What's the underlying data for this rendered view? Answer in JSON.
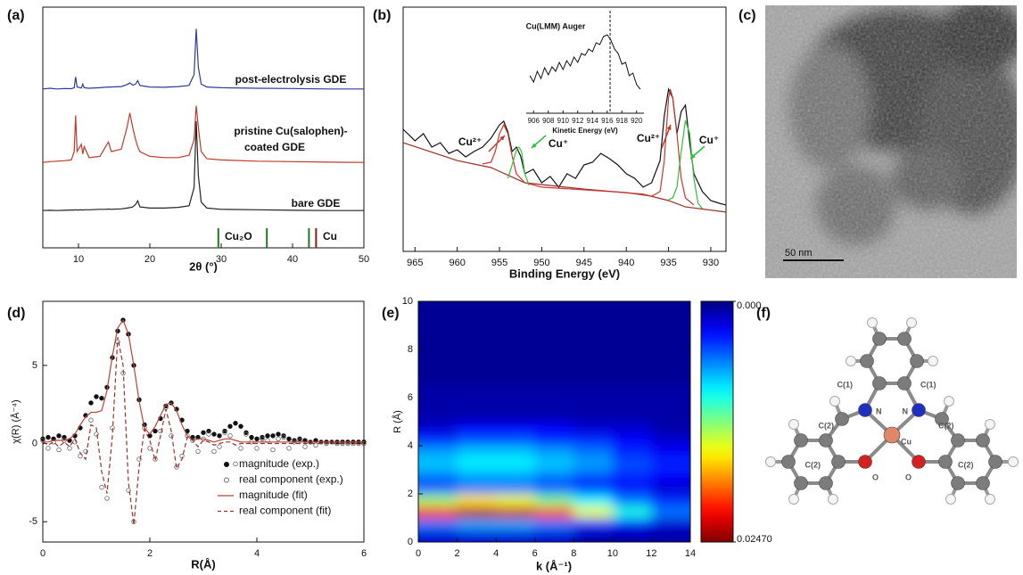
{
  "chart_data": [
    {
      "type": "line",
      "panel_label": "(a)",
      "xlabel": "2θ (°)",
      "xlim": [
        5,
        50
      ],
      "xticks": [
        10,
        20,
        30,
        40,
        50
      ],
      "ylim": [
        0,
        100
      ],
      "x": [
        5,
        6,
        7,
        8,
        9,
        9.4,
        9.6,
        9.8,
        10.4,
        10.6,
        10.8,
        11.5,
        13,
        13.8,
        14.2,
        14.6,
        16,
        16.8,
        17.2,
        17.6,
        18,
        18.3,
        18.6,
        20,
        22,
        24,
        25.5,
        26.2,
        26.5,
        26.8,
        27.2,
        28,
        30,
        35,
        40,
        45,
        50
      ],
      "series": [
        {
          "label": [
            "post-electrolysis GDE"
          ],
          "color": "#2e3a9e",
          "values": [
            66,
            66.3,
            66,
            66.2,
            66.1,
            66.5,
            71,
            66.8,
            66.4,
            68,
            66.5,
            66.3,
            66.5,
            66.7,
            66.8,
            66.8,
            67,
            67.8,
            68.5,
            67.6,
            68,
            69.5,
            67.5,
            66.8,
            66.7,
            67,
            67.5,
            72,
            91,
            75,
            68,
            66.8,
            66.5,
            66.3,
            66.2,
            66,
            66
          ]
        },
        {
          "label": [
            "pristine Cu(salophen)-",
            "coated GDE"
          ],
          "color": "#c0392b",
          "values": [
            35.5,
            35.8,
            36,
            36.2,
            36.5,
            40,
            55,
            40,
            43,
            39,
            42,
            37.5,
            38,
            42,
            44,
            40,
            41,
            50,
            56,
            50,
            45,
            42,
            40,
            38,
            37.5,
            37.5,
            38.5,
            45,
            59,
            50,
            40,
            37,
            36.5,
            36,
            35.8,
            35.6,
            35.5
          ]
        },
        {
          "label": [
            "bare GDE"
          ],
          "color": "#222222",
          "values": [
            15.5,
            15.6,
            15.5,
            15.6,
            15.7,
            15.7,
            15.8,
            15.7,
            15.8,
            15.7,
            15.8,
            15.8,
            16,
            16,
            16.1,
            16,
            16.2,
            16.5,
            16.7,
            17,
            18,
            19.5,
            17,
            16.5,
            16.5,
            16.8,
            17.5,
            25,
            52.6,
            30,
            19,
            16.5,
            16,
            15.8,
            15.6,
            15.5,
            15.5
          ]
        }
      ],
      "reference_lines": [
        {
          "label": "Cu₂O",
          "color": "#1f7a1f",
          "x": [
            29.6,
            36.4,
            42.3
          ]
        },
        {
          "label": "Cu",
          "color": "#8b1a1a",
          "x": [
            43.3
          ]
        }
      ]
    },
    {
      "type": "line",
      "panel_label": "(b)",
      "xlabel": "Binding Energy (eV)",
      "xlim": [
        966.4,
        928.2
      ],
      "xticks": [
        965,
        960,
        955,
        950,
        945,
        940,
        935,
        930
      ],
      "ylim": [
        0,
        100
      ],
      "series": [
        {
          "color": "#111111",
          "x": [
            966.4,
            965,
            964,
            963,
            962,
            961,
            960,
            959,
            958,
            957,
            956,
            955,
            954.5,
            954,
            953.5,
            953,
            952.5,
            952,
            951,
            950,
            949,
            948,
            947,
            946,
            945,
            944,
            943,
            942,
            941,
            940,
            939,
            938,
            937,
            936,
            935.5,
            935,
            934.5,
            934,
            933.5,
            933,
            932.5,
            932,
            931,
            930,
            929,
            928.2
          ],
          "values": [
            50,
            45.3,
            48.2,
            42.7,
            44.5,
            40.1,
            41.6,
            38.7,
            40.9,
            42.7,
            46.4,
            51.8,
            53.3,
            48.9,
            40.9,
            42.7,
            39.1,
            31.8,
            33.6,
            28.1,
            30.7,
            26.3,
            31.8,
            29.9,
            35.4,
            36.5,
            40.1,
            38,
            35.4,
            31.8,
            29.9,
            26.3,
            28.1,
            37.2,
            55.5,
            66.4,
            62.8,
            48.2,
            57.3,
            59.9,
            44.5,
            31.8,
            24.5,
            20.8,
            19.7,
            19
          ]
        },
        {
          "color": "#9b2d25",
          "x": [
            966.4,
            960,
            956,
            952,
            945,
            938,
            935,
            933,
            928.2
          ],
          "values": [
            44.5,
            37.2,
            34.3,
            28.1,
            25.5,
            23.4,
            20.8,
            18.2,
            16.1
          ]
        },
        {
          "color": "#c8372d",
          "x": [
            957,
            956,
            955.5,
            955,
            954.5,
            954,
            953.5,
            953,
            952,
            950,
            940,
            937,
            936,
            935.5,
            935,
            934.8,
            934.5,
            934,
            933.5,
            933,
            932
          ],
          "values": [
            35.8,
            36.5,
            40.9,
            48.2,
            51.8,
            48.2,
            39.1,
            31.8,
            28.1,
            26.3,
            24.1,
            22.6,
            24.5,
            37.2,
            62.8,
            66.4,
            62.8,
            48.2,
            29.9,
            21.9,
            19
          ]
        },
        {
          "color": "#2fbf3a",
          "x": [
            954,
            953.5,
            953,
            952.7,
            952.4,
            952,
            951.5,
            945,
            935,
            934.5,
            934,
            933.5,
            933,
            932.5,
            932,
            931.5,
            931
          ],
          "values": [
            29.9,
            35.4,
            41.6,
            42.7,
            40.9,
            31.8,
            27.0,
            null,
            21.2,
            21.9,
            26.3,
            40.9,
            53.6,
            48.2,
            29.9,
            19.7,
            17.5
          ]
        }
      ],
      "annotations": [
        {
          "text": "Cu²⁺",
          "color": "#c0392b"
        },
        {
          "text": "Cu⁺",
          "color": "#2fbf3a"
        },
        {
          "text": "Cu²⁺",
          "color": "#c0392b"
        },
        {
          "text": "Cu⁺",
          "color": "#2fbf3a"
        }
      ],
      "inset": {
        "title": "Cu(LMM) Auger",
        "xlabel": "Kinetic Energy (eV)",
        "xlim": [
          905,
          921
        ],
        "xticks": [
          906,
          908,
          910,
          912,
          914,
          916,
          918,
          920
        ],
        "ylim": [
          0,
          100
        ],
        "color": "#111111",
        "marker_x": 916.4,
        "x": [
          905.5,
          906,
          906.5,
          907,
          907.5,
          908,
          908.5,
          909,
          909.5,
          910,
          910.5,
          911,
          911.5,
          912,
          912.5,
          913,
          913.5,
          914,
          914.5,
          915,
          915.5,
          916,
          916.5,
          917,
          917.5,
          918,
          918.5,
          919,
          919.5,
          920,
          920.5
        ],
        "values": [
          39.3,
          32.7,
          43.9,
          36.4,
          47.7,
          40.2,
          48.6,
          43.9,
          53.3,
          45.8,
          55.1,
          49.5,
          58.9,
          53.3,
          62.6,
          60.7,
          67.3,
          64.5,
          73.8,
          72,
          80.4,
          82.2,
          76.6,
          67.3,
          62.6,
          51.4,
          53.3,
          39.3,
          42.1,
          29.9,
          25.2
        ]
      }
    },
    {
      "type": "line",
      "panel_label": "(d)",
      "xlabel": "R(Å)",
      "ylabel": "χ(R) (Å⁻⁴)",
      "xlim": [
        0,
        6
      ],
      "xticks": [
        0,
        2,
        4,
        6
      ],
      "ylim": [
        -6.3,
        9.1
      ],
      "yticks": [
        -5,
        0,
        5
      ],
      "x": [
        0,
        0.1,
        0.2,
        0.3,
        0.4,
        0.5,
        0.6,
        0.7,
        0.8,
        0.9,
        1,
        1.1,
        1.2,
        1.3,
        1.4,
        1.5,
        1.6,
        1.7,
        1.8,
        1.9,
        2,
        2.1,
        2.2,
        2.3,
        2.4,
        2.5,
        2.6,
        2.7,
        2.8,
        2.9,
        3,
        3.1,
        3.2,
        3.3,
        3.4,
        3.5,
        3.6,
        3.7,
        3.8,
        3.9,
        4,
        4.1,
        4.2,
        4.3,
        4.4,
        4.5,
        4.6,
        4.7,
        4.8,
        4.9,
        5,
        5.1,
        5.2,
        5.3,
        5.4,
        5.5,
        5.6,
        5.7,
        5.8,
        5.9,
        6
      ],
      "series": [
        {
          "name": "magnitude (exp.)",
          "color": "#111111",
          "marker": "filled",
          "values": [
            0.3,
            0.4,
            0.3,
            0.5,
            0.4,
            0.2,
            0.5,
            1.0,
            1.8,
            2.6,
            3.0,
            2.9,
            3.6,
            5.5,
            7.2,
            7.9,
            7.0,
            5.0,
            2.8,
            1.2,
            0.5,
            0.8,
            1.6,
            2.4,
            2.6,
            2.2,
            1.5,
            0.8,
            0.4,
            0.4,
            0.7,
            0.8,
            0.6,
            0.5,
            0.8,
            1.1,
            1.3,
            1.1,
            0.7,
            0.4,
            0.3,
            0.4,
            0.5,
            0.5,
            0.6,
            0.5,
            0.3,
            0.2,
            0.3,
            0.2,
            0.1,
            0.2,
            0.1,
            0.1,
            0.1,
            0.1,
            0.1,
            0.1,
            0.1,
            0.1,
            0.1
          ]
        },
        {
          "name": "real component (exp.)",
          "color": "#666666",
          "marker": "open",
          "values": [
            0.2,
            -0.3,
            0.1,
            -0.4,
            0.2,
            -0.3,
            0.1,
            -0.8,
            -0.5,
            1.5,
            0.6,
            -2.8,
            -3.5,
            1.0,
            6.5,
            4.5,
            -3.0,
            -5.0,
            -1.0,
            1.0,
            -0.3,
            -1.0,
            0.8,
            2.3,
            0.5,
            -1.5,
            -0.8,
            0.5,
            0.2,
            -0.5,
            0.3,
            0.6,
            -0.5,
            -0.2,
            0.7,
            0.5,
            -1.3,
            -0.3,
            0.6,
            0.1,
            -0.3,
            0.3,
            0.2,
            -0.4,
            0.3,
            0.4,
            -0.3,
            0.1,
            0.2,
            -0.2,
            0.1,
            -0.1,
            0.1,
            0,
            0.1,
            0,
            0,
            0,
            0,
            0,
            0
          ]
        },
        {
          "name": "magnitude (fit)",
          "color": "#b5453a",
          "line": "solid",
          "values": [
            0.1,
            0.1,
            0.2,
            0.2,
            0.2,
            0.3,
            0.6,
            1.2,
            1.7,
            2.0,
            2.0,
            2.1,
            3.4,
            5.6,
            7.4,
            7.9,
            7.0,
            5.0,
            2.7,
            1.0,
            0.6,
            1.1,
            1.8,
            2.5,
            2.6,
            2.1,
            1.2,
            0.5,
            0.2,
            0.3,
            0.3,
            0.2,
            0.1,
            0.2,
            0.3,
            0.3,
            0.2,
            0.1,
            0.1,
            0.1,
            0.1,
            0.1,
            0.1,
            0.1,
            0.1,
            0.1,
            0.1,
            0.1,
            0.1,
            0.1,
            0.1,
            0.1,
            0.1,
            0.1,
            0.1,
            0.1,
            0.1,
            0.1,
            0.1,
            0.1,
            0.1
          ]
        },
        {
          "name": "real component (fit)",
          "color": "#9c3328",
          "line": "dashed",
          "values": [
            0.1,
            -0.1,
            0.1,
            -0.2,
            0.1,
            -0.2,
            0.3,
            -0.6,
            -1.0,
            1.2,
            1.0,
            -1.8,
            -3.2,
            0.5,
            6.8,
            5.0,
            -2.5,
            -5.2,
            -1.5,
            0.9,
            0.2,
            -1.1,
            0.5,
            2.2,
            0.8,
            -1.6,
            -1.0,
            0.4,
            0.2,
            -0.2,
            0.2,
            0.1,
            -0.1,
            0,
            0.1,
            0.1,
            -0.1,
            0,
            0,
            0,
            0,
            0,
            0,
            0,
            0,
            0,
            0,
            0,
            0,
            0,
            0,
            0,
            0,
            0,
            0,
            0,
            0,
            0,
            0,
            0,
            0
          ]
        }
      ]
    },
    {
      "type": "heatmap",
      "panel_label": "(e)",
      "xlabel": "k (Å⁻¹)",
      "ylabel": "R (Å)",
      "xlim": [
        0,
        14
      ],
      "xticks": [
        0,
        2,
        4,
        6,
        8,
        10,
        12,
        14
      ],
      "ylim": [
        0,
        10
      ],
      "yticks": [
        0,
        2,
        4,
        6,
        8,
        10
      ],
      "x": [
        1,
        3,
        5,
        7,
        9,
        11,
        13
      ],
      "y": [
        0.25,
        0.75,
        1.25,
        1.75,
        2.25,
        2.75,
        3.25,
        3.75,
        4.25,
        4.75,
        5.25,
        5.75,
        6.25,
        6.75,
        7.25,
        7.75,
        8.25,
        8.75,
        9.25,
        9.75
      ],
      "z": [
        [
          0.002,
          0.002,
          0.002,
          0.002,
          0.001,
          0.001,
          0.001
        ],
        [
          0.006,
          0.007,
          0.007,
          0.006,
          0.004,
          0.003,
          0.002
        ],
        [
          0.021,
          0.0235,
          0.023,
          0.02,
          0.015,
          0.01,
          0.006
        ],
        [
          0.013,
          0.016,
          0.015,
          0.012,
          0.009,
          0.006,
          0.004
        ],
        [
          0.005,
          0.006,
          0.006,
          0.005,
          0.004,
          0.003,
          0.002
        ],
        [
          0.006,
          0.007,
          0.007,
          0.006,
          0.005,
          0.004,
          0.003
        ],
        [
          0.008,
          0.009,
          0.009,
          0.008,
          0.007,
          0.005,
          0.004
        ],
        [
          0.007,
          0.008,
          0.008,
          0.007,
          0.006,
          0.004,
          0.003
        ],
        [
          0.004,
          0.005,
          0.005,
          0.004,
          0.004,
          0.003,
          0.002
        ],
        [
          0.002,
          0.003,
          0.003,
          0.003,
          0.002,
          0.002,
          0.001
        ],
        [
          0.001,
          0.001,
          0.001,
          0.001,
          0.001,
          0.001,
          0.001
        ],
        [
          0.001,
          0.001,
          0.001,
          0.001,
          0.001,
          0.001,
          0.001
        ],
        [
          0.001,
          0.001,
          0.001,
          0.001,
          0.001,
          0.001,
          0.001
        ],
        [
          0.0005,
          0.0005,
          0.0005,
          0.0005,
          0.0005,
          0.0005,
          0.0005
        ],
        [
          0.0005,
          0.0005,
          0.0005,
          0.0005,
          0.0005,
          0.0005,
          0.0005
        ],
        [
          0.0005,
          0.0005,
          0.0005,
          0.0005,
          0.0005,
          0.0005,
          0.0005
        ],
        [
          0.0005,
          0.0005,
          0.0005,
          0.0005,
          0.0005,
          0.0005,
          0.0005
        ],
        [
          0.0005,
          0.0005,
          0.0005,
          0.0005,
          0.0005,
          0.0005,
          0.0005
        ],
        [
          0.0005,
          0.0005,
          0.0005,
          0.0005,
          0.0005,
          0.0005,
          0.0005
        ],
        [
          0.0005,
          0.0005,
          0.0005,
          0.0005,
          0.0005,
          0.0005,
          0.0005
        ]
      ],
      "colormap": "jet",
      "clim": [
        0,
        0.0247
      ],
      "cticks": [
        {
          "value": 0,
          "label": "0.000"
        },
        {
          "value": 0.0247,
          "label": "0.02470"
        }
      ]
    }
  ],
  "image": {
    "panel_label": "(c)",
    "scale_bar": "50 nm"
  },
  "diagram": {
    "panel_label": "(f)",
    "atom_labels": [
      "C(1)",
      "C(1)",
      "N",
      "N",
      "C(2)",
      "C(2)",
      "C(2)",
      "C(2)",
      "Cu",
      "O",
      "O"
    ]
  }
}
